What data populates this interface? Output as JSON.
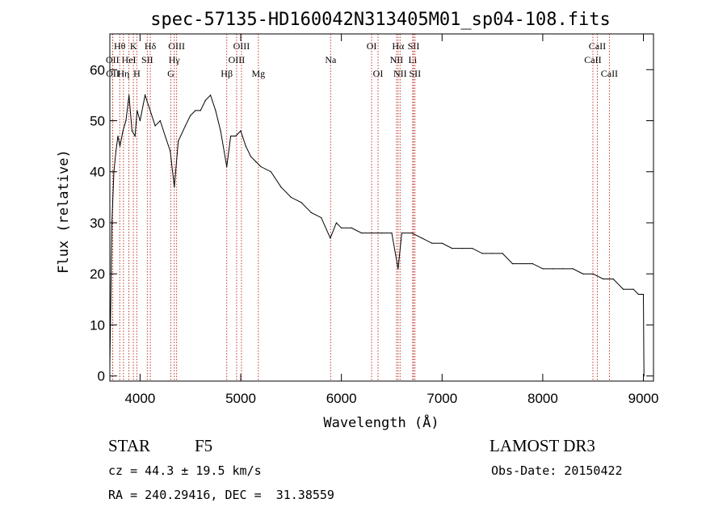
{
  "chart_data": {
    "type": "line",
    "title": "spec-57135-HD160042N313405M01_sp04-108.fits",
    "xlabel": "Wavelength (Å)",
    "ylabel": "Flux (relative)",
    "xlim": [
      3700,
      9100
    ],
    "ylim": [
      -1,
      67
    ],
    "x_ticks": [
      4000,
      5000,
      6000,
      7000,
      8000,
      9000
    ],
    "y_ticks": [
      0,
      10,
      20,
      30,
      40,
      50,
      60
    ],
    "series": [
      {
        "name": "flux",
        "x": [
          3700,
          3720,
          3740,
          3760,
          3780,
          3800,
          3830,
          3860,
          3890,
          3920,
          3950,
          3970,
          4000,
          4050,
          4100,
          4150,
          4200,
          4250,
          4300,
          4340,
          4380,
          4450,
          4500,
          4550,
          4600,
          4650,
          4700,
          4750,
          4800,
          4861,
          4900,
          4950,
          5000,
          5050,
          5100,
          5150,
          5200,
          5300,
          5400,
          5500,
          5600,
          5700,
          5800,
          5890,
          5950,
          6000,
          6100,
          6200,
          6300,
          6400,
          6500,
          6563,
          6600,
          6700,
          6800,
          6900,
          7000,
          7100,
          7200,
          7300,
          7400,
          7500,
          7600,
          7700,
          7800,
          7900,
          8000,
          8100,
          8200,
          8300,
          8400,
          8500,
          8600,
          8700,
          8800,
          8900,
          8950,
          9000,
          9005
        ],
        "y": [
          2,
          30,
          40,
          44,
          47,
          45,
          48,
          50,
          55,
          48,
          47,
          52,
          50,
          55,
          52,
          49,
          50,
          47,
          44,
          37,
          46,
          49,
          51,
          52,
          52,
          54,
          55,
          52,
          48,
          41,
          47,
          47,
          48,
          45,
          43,
          42,
          41,
          40,
          37,
          35,
          34,
          32,
          31,
          27,
          30,
          29,
          29,
          28,
          28,
          28,
          28,
          21,
          28,
          28,
          27,
          26,
          26,
          25,
          25,
          25,
          24,
          24,
          24,
          22,
          22,
          22,
          21,
          21,
          21,
          21,
          20,
          20,
          19,
          19,
          17,
          17,
          16,
          16,
          0
        ]
      }
    ],
    "spectral_lines": [
      {
        "name": "Hθ",
        "wavelength": 3798,
        "row": 1
      },
      {
        "name": "OII",
        "wavelength": 3727,
        "row": 2
      },
      {
        "name": "OII",
        "wavelength": 3729,
        "row": 3
      },
      {
        "name": "K",
        "wavelength": 3934,
        "row": 1
      },
      {
        "name": "HeI",
        "wavelength": 3889,
        "row": 2
      },
      {
        "name": "Hη",
        "wavelength": 3835,
        "row": 3
      },
      {
        "name": "Hδ",
        "wavelength": 4102,
        "row": 1
      },
      {
        "name": "SII",
        "wavelength": 4072,
        "row": 2
      },
      {
        "name": "H",
        "wavelength": 3968,
        "row": 3
      },
      {
        "name": "OIII",
        "wavelength": 4363,
        "row": 1
      },
      {
        "name": "Hγ",
        "wavelength": 4340,
        "row": 2
      },
      {
        "name": "G",
        "wavelength": 4305,
        "row": 3
      },
      {
        "name": "OIII",
        "wavelength": 5007,
        "row": 1
      },
      {
        "name": "OIII",
        "wavelength": 4959,
        "row": 2
      },
      {
        "name": "Hβ",
        "wavelength": 4861,
        "row": 3
      },
      {
        "name": "Mg",
        "wavelength": 5175,
        "row": 3
      },
      {
        "name": "Na",
        "wavelength": 5893,
        "row": 2
      },
      {
        "name": "OI",
        "wavelength": 6300,
        "row": 1
      },
      {
        "name": "OI",
        "wavelength": 6364,
        "row": 3
      },
      {
        "name": "Hα",
        "wavelength": 6563,
        "row": 1
      },
      {
        "name": "SII",
        "wavelength": 6717,
        "row": 1
      },
      {
        "name": "NII",
        "wavelength": 6548,
        "row": 2
      },
      {
        "name": "Li",
        "wavelength": 6708,
        "row": 2
      },
      {
        "name": "NII",
        "wavelength": 6583,
        "row": 3
      },
      {
        "name": "SII",
        "wavelength": 6731,
        "row": 3
      },
      {
        "name": "CaII",
        "wavelength": 8542,
        "row": 1
      },
      {
        "name": "CaII",
        "wavelength": 8498,
        "row": 2
      },
      {
        "name": "CaII",
        "wavelength": 8662,
        "row": 3
      }
    ],
    "line_color": "#c0392b"
  },
  "info": {
    "object_type": "STAR",
    "subclass": "F5",
    "survey": "LAMOST DR3",
    "cz": "cz = 44.3 ± 19.5 km/s",
    "obs_date": "Obs-Date: 20150422",
    "coords": "RA = 240.29416, DEC =  31.38559"
  }
}
